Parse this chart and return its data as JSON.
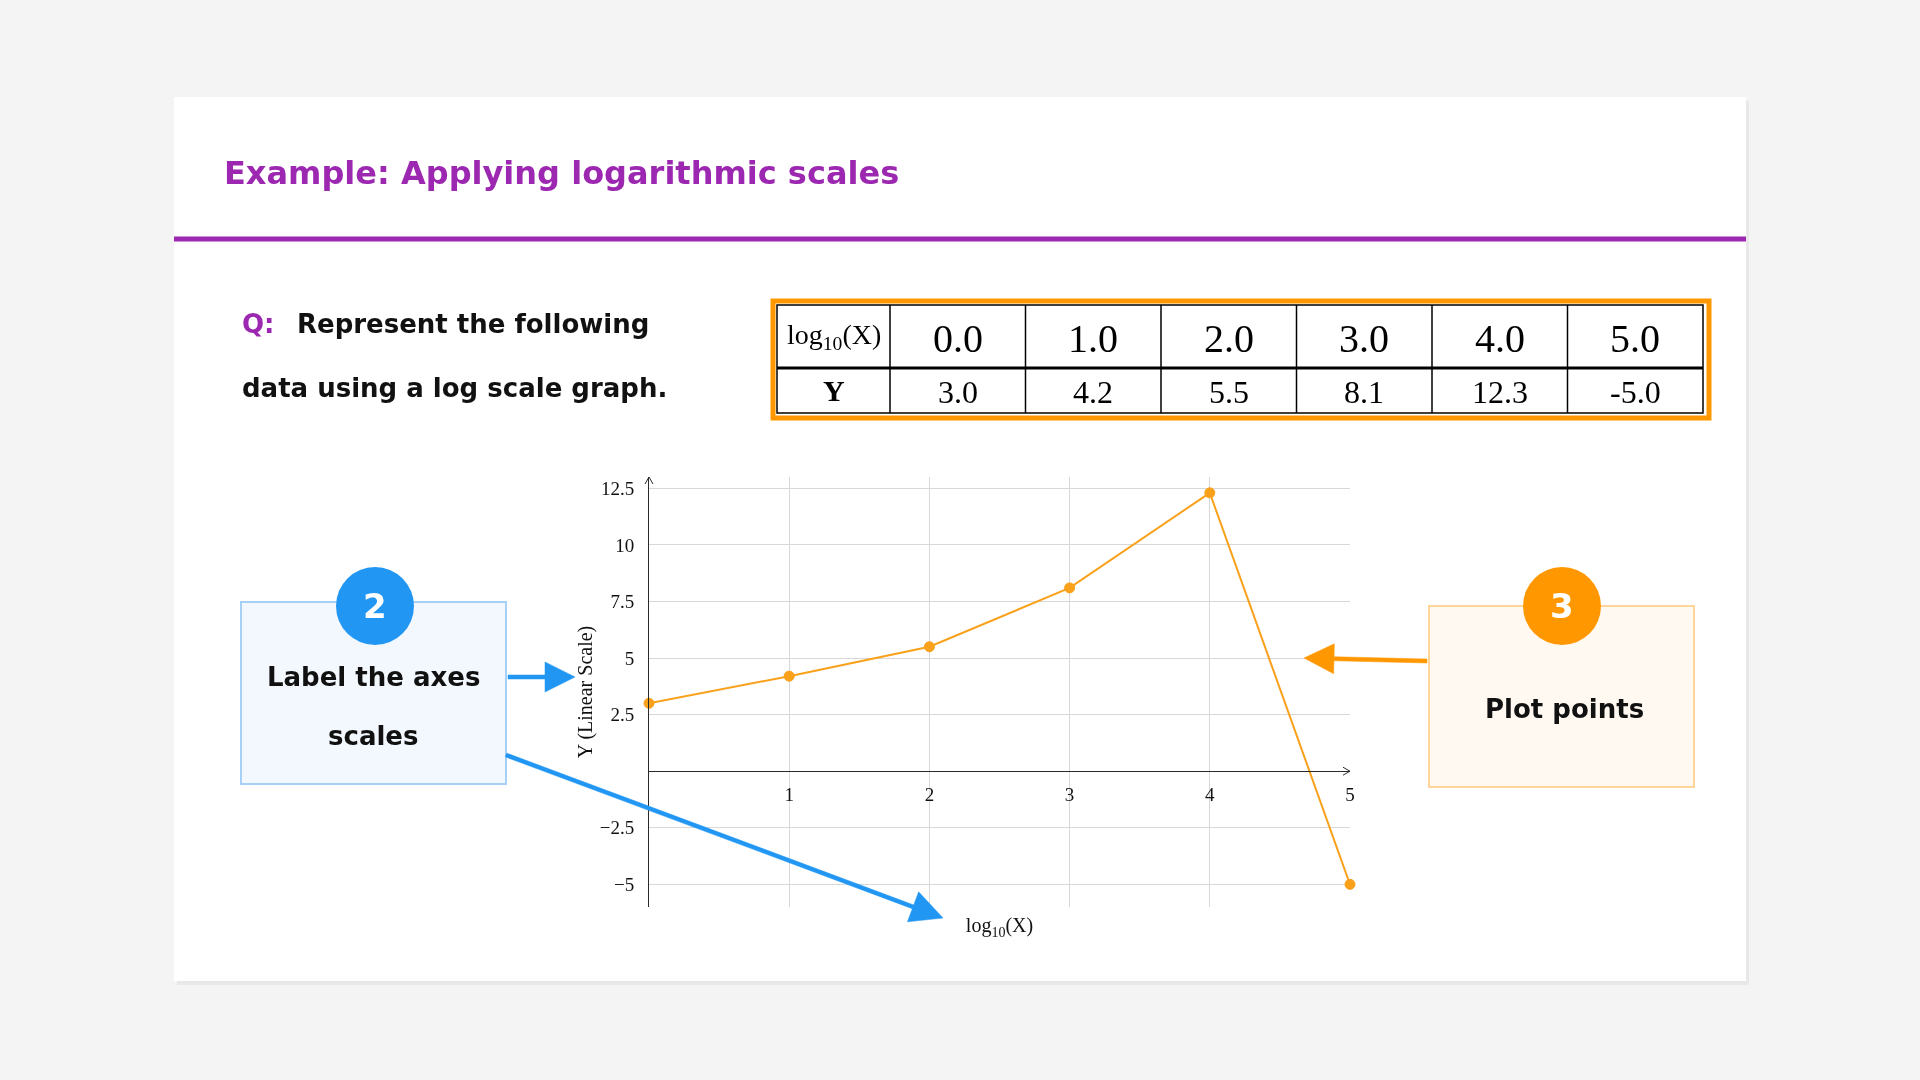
{
  "chart_data": {
    "type": "line",
    "title": "Example: Applying logarithmic scales",
    "xlabel": "log$_{10}$(X)",
    "ylabel": "Y (Linear Scale)",
    "x": [
      0.0,
      1.0,
      2.0,
      3.0,
      4.0,
      5.0
    ],
    "values": [
      3.0,
      4.2,
      5.5,
      8.1,
      12.3,
      -5.0
    ],
    "color": "#f9a11b",
    "xlim": [
      0,
      5
    ],
    "xticks": [
      1,
      2,
      3,
      4,
      5
    ],
    "ylim": [
      -6,
      13
    ],
    "yticks": [
      {
        "value": -5,
        "label": "−5"
      },
      {
        "value": -2.5,
        "label": "−2.5"
      },
      2.5,
      5,
      7.5,
      10,
      12.5
    ],
    "grid": true,
    "marker": "circle",
    "line_style": "solid",
    "annotations": [
      "Q:",
      "Represent the following data using a log scale graph.",
      "log$_{10}$(X)",
      "0.0",
      "1.0",
      "2.0",
      "3.0",
      "4.0",
      "5.0",
      "Y",
      "3.0",
      "4.2",
      "5.5",
      "8.1",
      "12.3",
      "-5.0",
      "2",
      "Label the axes scales",
      "3",
      "Plot points"
    ]
  }
}
